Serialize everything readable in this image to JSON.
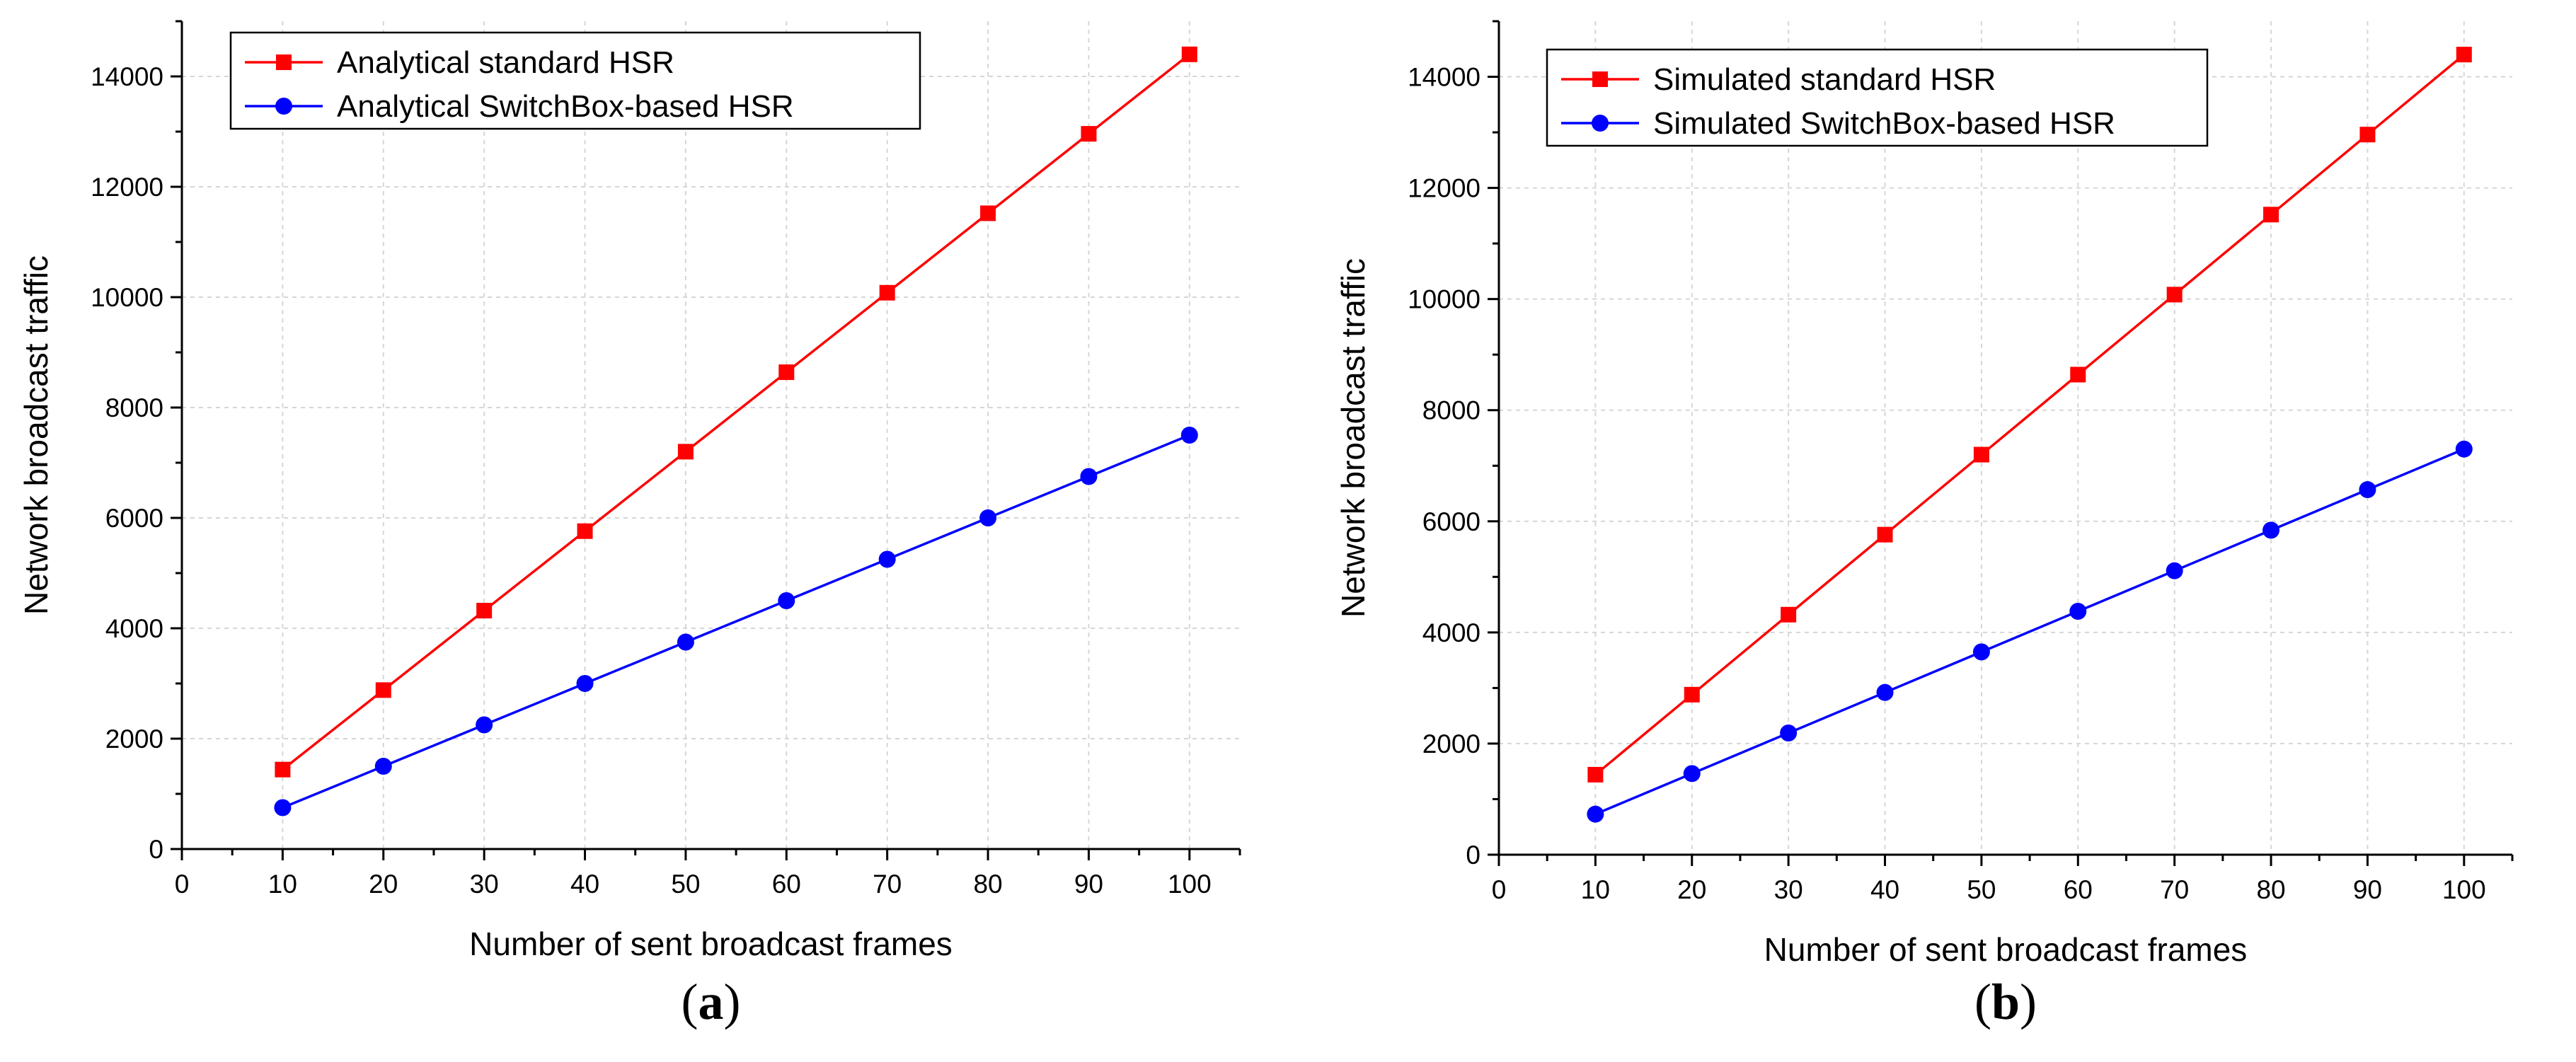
{
  "chart_data": [
    {
      "type": "line",
      "panel_label": "(a)",
      "panel_letter": "a",
      "xlabel": "Number of sent broadcast frames",
      "ylabel": "Network broadcast traffic",
      "xlim": [
        0,
        105
      ],
      "ylim": [
        0,
        15000
      ],
      "xticks": [
        0,
        10,
        20,
        30,
        40,
        50,
        60,
        70,
        80,
        90,
        100
      ],
      "yticks": [
        0,
        2000,
        4000,
        6000,
        8000,
        10000,
        12000,
        14000
      ],
      "grid": true,
      "legend_position": "top-left",
      "x": [
        10,
        20,
        30,
        40,
        50,
        60,
        70,
        80,
        90,
        100
      ],
      "series": [
        {
          "name": "Analytical standard HSR",
          "color": "#ff0000",
          "marker": "square",
          "values": [
            1440,
            2880,
            4320,
            5760,
            7200,
            8640,
            10080,
            11520,
            12960,
            14400
          ]
        },
        {
          "name": "Analytical SwitchBox-based HSR",
          "color": "#0000ff",
          "marker": "circle",
          "values": [
            750,
            1500,
            2250,
            3000,
            3750,
            4500,
            5250,
            6000,
            6750,
            7500
          ]
        }
      ]
    },
    {
      "type": "line",
      "panel_label": "(b)",
      "panel_letter": "b",
      "xlabel": "Number of sent broadcast frames",
      "ylabel": "Network broadcast traffic",
      "xlim": [
        0,
        105
      ],
      "ylim": [
        0,
        15000
      ],
      "xticks": [
        0,
        10,
        20,
        30,
        40,
        50,
        60,
        70,
        80,
        90,
        100
      ],
      "yticks": [
        0,
        2000,
        4000,
        6000,
        8000,
        10000,
        12000,
        14000
      ],
      "grid": true,
      "legend_position": "top-left",
      "x": [
        10,
        20,
        30,
        40,
        50,
        60,
        70,
        80,
        90,
        100
      ],
      "series": [
        {
          "name": "Simulated standard HSR",
          "color": "#ff0000",
          "marker": "square",
          "values": [
            1440,
            2880,
            4320,
            5760,
            7200,
            8640,
            10080,
            11520,
            12960,
            14400
          ]
        },
        {
          "name": "Simulated SwitchBox-based HSR",
          "color": "#0000ff",
          "marker": "circle",
          "values": [
            730,
            1460,
            2190,
            2920,
            3650,
            4380,
            5110,
            5840,
            6570,
            7300
          ]
        }
      ]
    }
  ]
}
